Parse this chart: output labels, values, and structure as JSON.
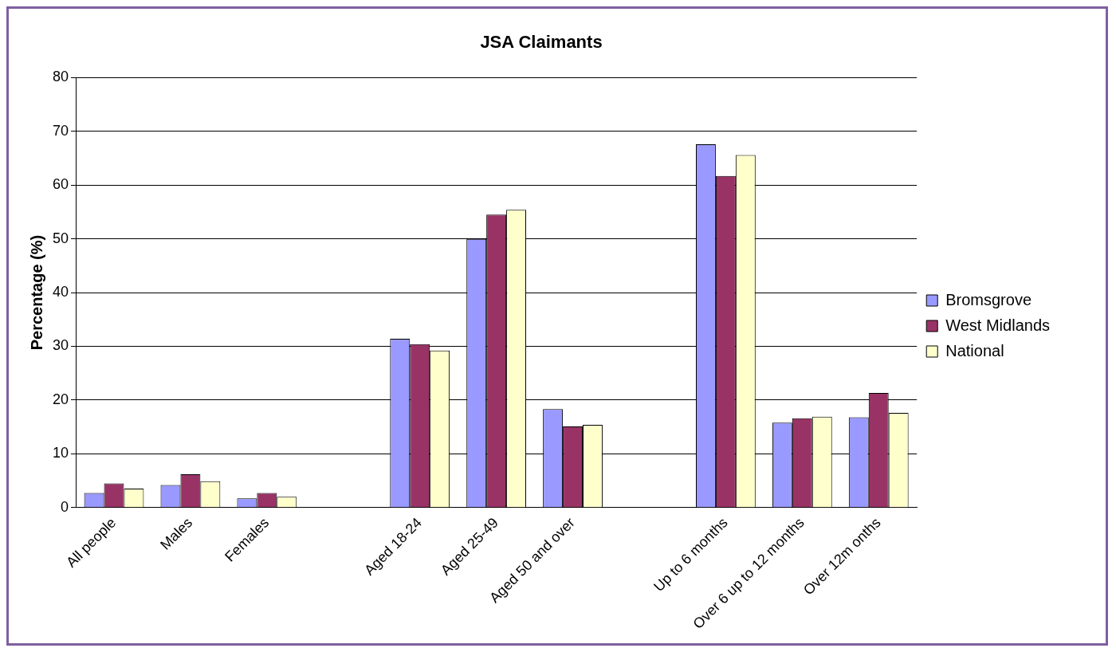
{
  "chart_data": {
    "type": "bar",
    "title": "JSA Claimants",
    "ylabel": "Percentage (%)",
    "categories": [
      "All people",
      "Males",
      "Females",
      null,
      "Aged 18-24",
      "Aged 25-49",
      "Aged 50 and over",
      null,
      "Up to 6 months",
      "Over 6 up to 12 months",
      "Over 12m onths"
    ],
    "series": [
      {
        "name": "Bromsgrove",
        "color": "#9999ff",
        "values": [
          2.7,
          4.2,
          1.7,
          null,
          31.4,
          50.0,
          18.3,
          null,
          67.6,
          15.8,
          16.8
        ]
      },
      {
        "name": "West Midlands",
        "color": "#993366",
        "values": [
          4.5,
          6.2,
          2.7,
          null,
          30.4,
          54.5,
          15.1,
          null,
          61.7,
          16.6,
          21.3
        ]
      },
      {
        "name": "National",
        "color": "#ffffcc",
        "values": [
          3.5,
          4.9,
          2.0,
          null,
          29.2,
          55.4,
          15.4,
          null,
          65.6,
          16.9,
          17.6
        ]
      }
    ],
    "ylim": [
      0,
      80
    ],
    "yticks": [
      0,
      10,
      20,
      30,
      40,
      50,
      60,
      70,
      80
    ],
    "grid": "y",
    "legend": "right"
  }
}
